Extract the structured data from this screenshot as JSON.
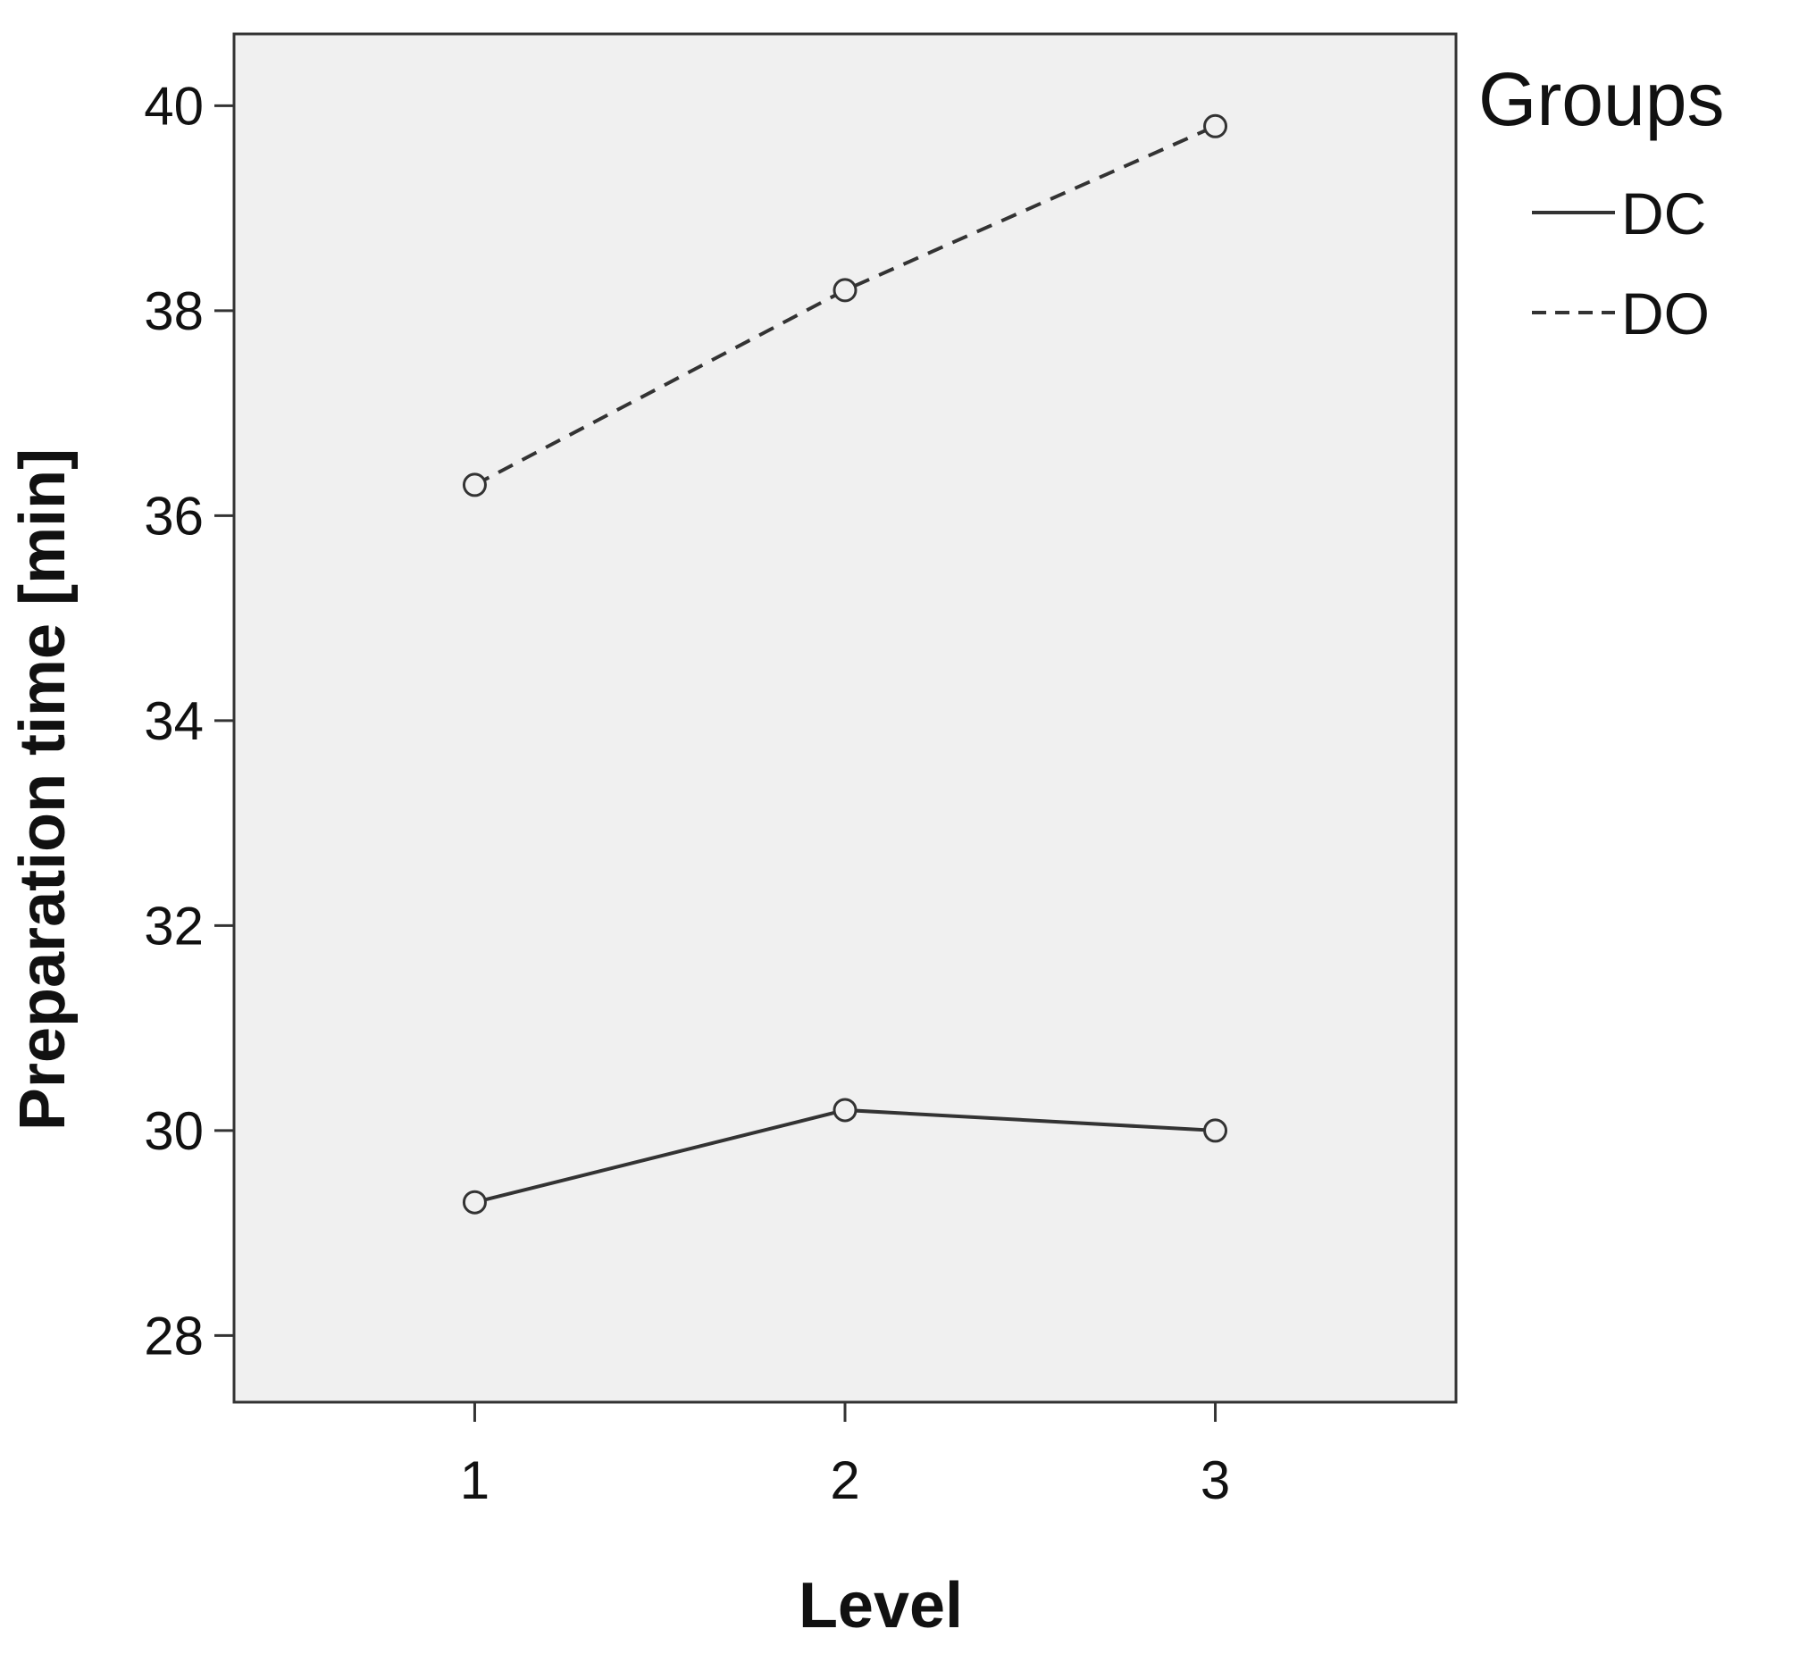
{
  "chart_data": {
    "type": "line",
    "xlabel": "Level",
    "ylabel": "Preparation time [min]",
    "x": [
      1,
      2,
      3
    ],
    "x_tick_labels": [
      "1",
      "2",
      "3"
    ],
    "xlim": [
      0.35,
      3.65
    ],
    "ylim": [
      27.35,
      40.7
    ],
    "y_ticks": [
      28,
      30,
      32,
      34,
      36,
      38,
      40
    ],
    "y_tick_labels": [
      "28",
      "30",
      "32",
      "34",
      "36",
      "38",
      "40"
    ],
    "grid": false,
    "legend": {
      "title": "Groups",
      "placement": "outside-right-top"
    },
    "series": [
      {
        "name": "DC",
        "values": [
          29.3,
          30.2,
          30.0
        ],
        "line_style": "solid",
        "marker": "open-circle",
        "color": "#333333"
      },
      {
        "name": "DO",
        "values": [
          36.3,
          38.2,
          39.8
        ],
        "line_style": "dashed",
        "marker": "open-circle",
        "color": "#333333"
      }
    ],
    "colors": {
      "plot_background": "#f0f0f0",
      "frame": "#333333",
      "text": "#111111"
    }
  }
}
